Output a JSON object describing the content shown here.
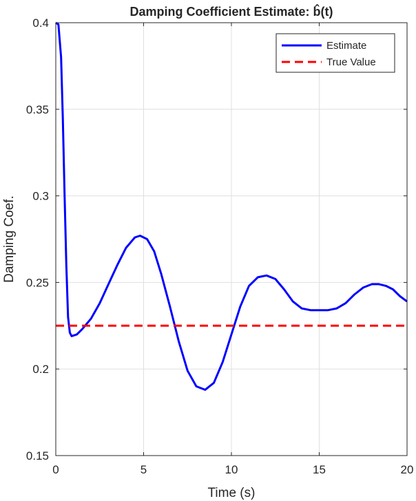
{
  "chart_data": {
    "type": "line",
    "title": "Damping Coefficient Estimate: b̂(t)",
    "xlabel": "Time (s)",
    "ylabel": "Damping Coef.",
    "xlim": [
      0,
      20
    ],
    "ylim": [
      0.15,
      0.4
    ],
    "x_ticks": [
      0,
      5,
      10,
      15,
      20
    ],
    "x_tick_labels": [
      "0",
      "5",
      "10",
      "15",
      "20"
    ],
    "y_ticks": [
      0.15,
      0.2,
      0.25,
      0.3,
      0.35,
      0.4
    ],
    "y_tick_labels": [
      "0.15",
      "0.2",
      "0.25",
      "0.3",
      "0.35",
      "0.4"
    ],
    "grid": true,
    "legend_position": "top-right",
    "series": [
      {
        "name": "Estimate",
        "color": "#0000ff",
        "style": "solid",
        "x": [
          0,
          0.15,
          0.3,
          0.4,
          0.5,
          0.6,
          0.7,
          0.8,
          0.9,
          1.2,
          1.5,
          2,
          2.5,
          3,
          3.5,
          4,
          4.5,
          4.8,
          5.2,
          5.6,
          6,
          6.5,
          7,
          7.5,
          8,
          8.5,
          9,
          9.5,
          10,
          10.5,
          11,
          11.5,
          12,
          12.5,
          13,
          13.5,
          14,
          14.5,
          15,
          15.5,
          16,
          16.5,
          17,
          17.5,
          18,
          18.4,
          18.8,
          19.2,
          19.6,
          20
        ],
        "y": [
          0.4,
          0.399,
          0.38,
          0.345,
          0.3,
          0.26,
          0.23,
          0.221,
          0.219,
          0.22,
          0.223,
          0.229,
          0.238,
          0.249,
          0.26,
          0.27,
          0.276,
          0.277,
          0.275,
          0.268,
          0.255,
          0.236,
          0.216,
          0.199,
          0.19,
          0.188,
          0.192,
          0.204,
          0.22,
          0.236,
          0.248,
          0.253,
          0.254,
          0.252,
          0.246,
          0.239,
          0.235,
          0.234,
          0.234,
          0.234,
          0.235,
          0.238,
          0.243,
          0.247,
          0.249,
          0.249,
          0.248,
          0.246,
          0.242,
          0.239
        ]
      },
      {
        "name": "True Value",
        "color": "#ff0000",
        "style": "dashed",
        "x": [
          0,
          20
        ],
        "y": [
          0.225,
          0.225
        ]
      }
    ]
  }
}
